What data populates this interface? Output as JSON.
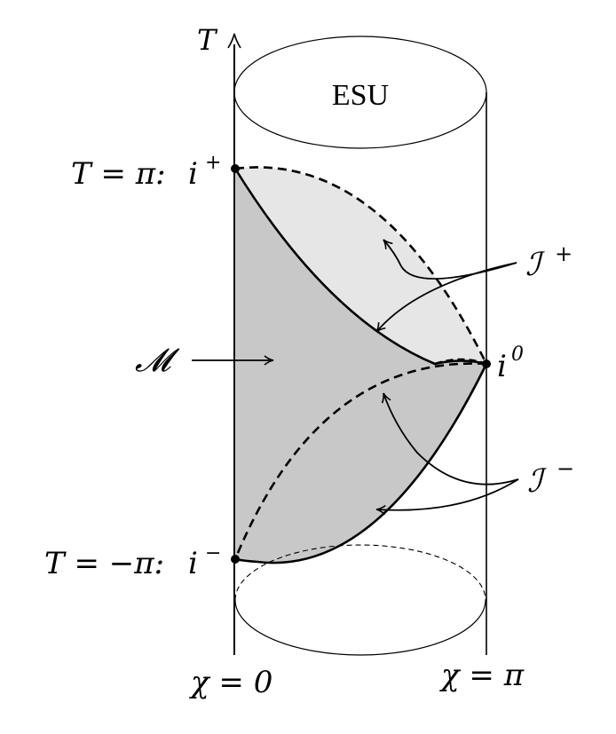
{
  "diagram": {
    "axis_label": "T",
    "cylinder_label": "ESU",
    "region_label": "𝓜",
    "points": {
      "i_plus": {
        "condition": "T = π:",
        "symbol": "i",
        "sup": "+"
      },
      "i_minus": {
        "condition": "T = −π:",
        "symbol": "i",
        "sup": "−"
      },
      "i_zero": {
        "symbol": "i",
        "sup": "0"
      }
    },
    "scri_plus": {
      "symbol": "ℐ",
      "sup": "+"
    },
    "scri_minus": {
      "symbol": "ℐ",
      "sup": "−"
    },
    "chi_left": "χ = 0",
    "chi_right": "χ = π"
  },
  "colors": {
    "line": "#000000",
    "front_fill": "#c8c8c8",
    "back_fill": "#e6e6e6"
  }
}
